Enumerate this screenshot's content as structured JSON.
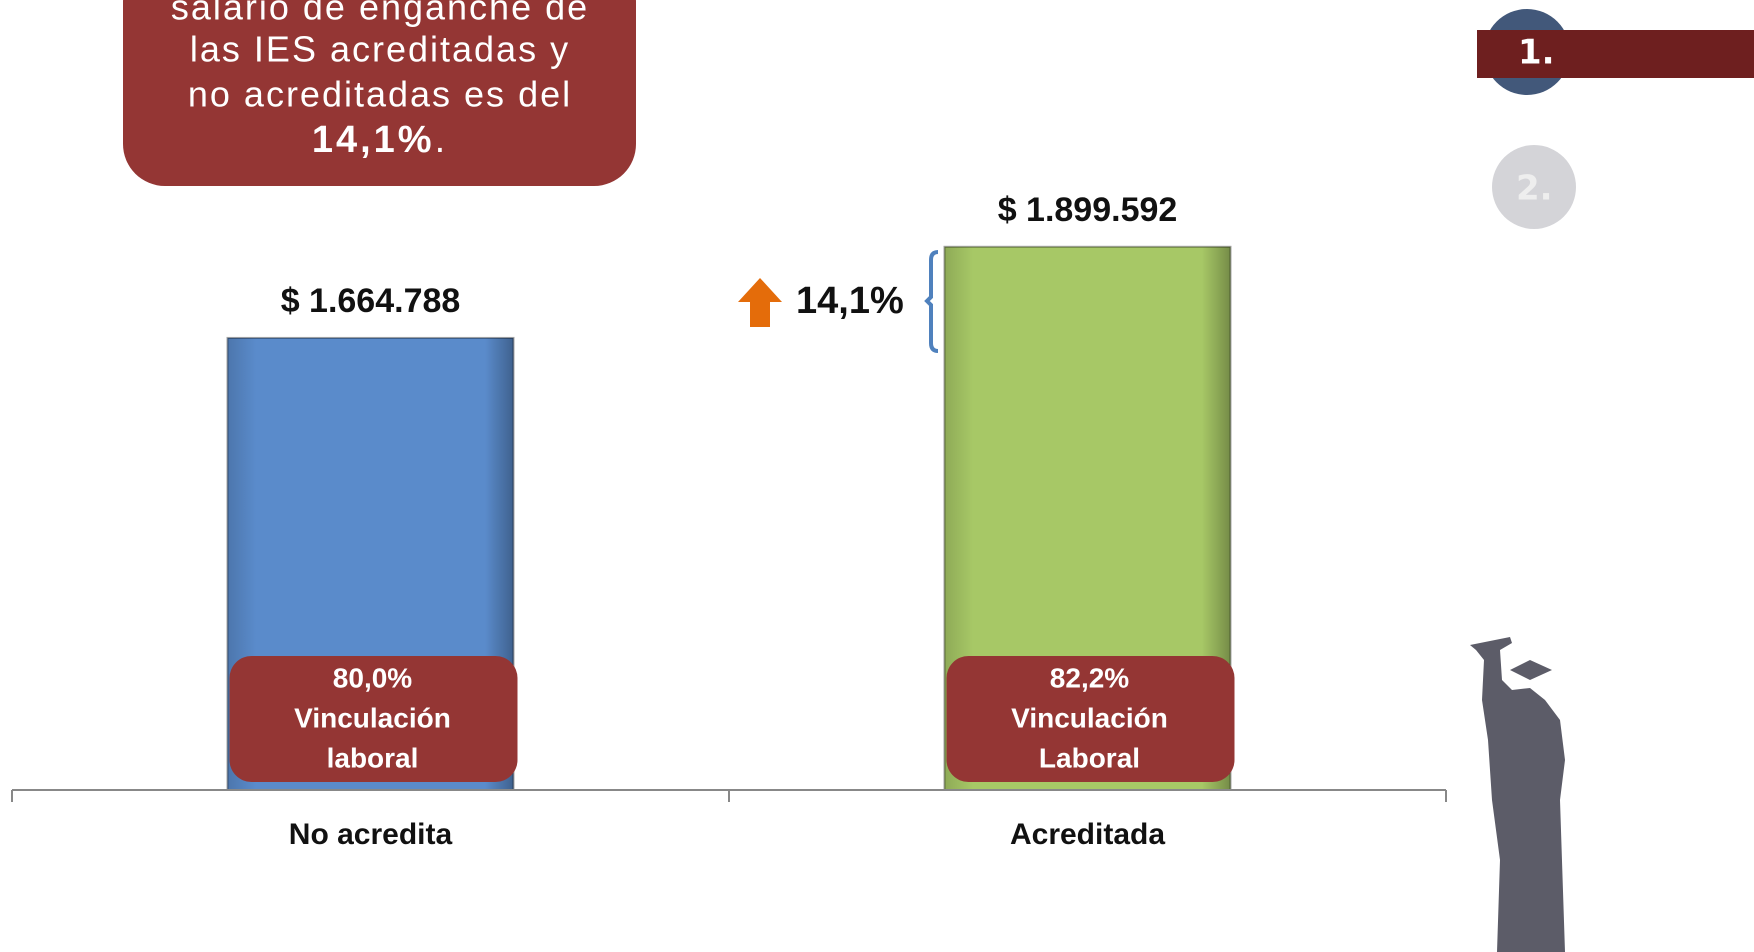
{
  "chart_data": {
    "type": "bar",
    "categories": [
      "No acredita",
      "Acreditada"
    ],
    "values": [
      1664788,
      1899592
    ],
    "value_labels": [
      "$ 1.664.788",
      "$ 1.899.592"
    ],
    "colors": [
      "#5a8bcb",
      "#a7c866"
    ],
    "ylim": [
      500000,
      2100000
    ],
    "callouts": [
      [
        "80,0%",
        "Vinculación",
        "laboral"
      ],
      [
        "82,2%",
        "Vinculación",
        "Laboral"
      ]
    ],
    "annotation": "14,1%",
    "textbox": {
      "lines": [
        "salario de enganche de",
        "las IES acreditadas y",
        "no acreditadas es del"
      ],
      "emphasis": "14,1%",
      "end": "."
    },
    "nav": [
      "1.",
      "2."
    ]
  }
}
